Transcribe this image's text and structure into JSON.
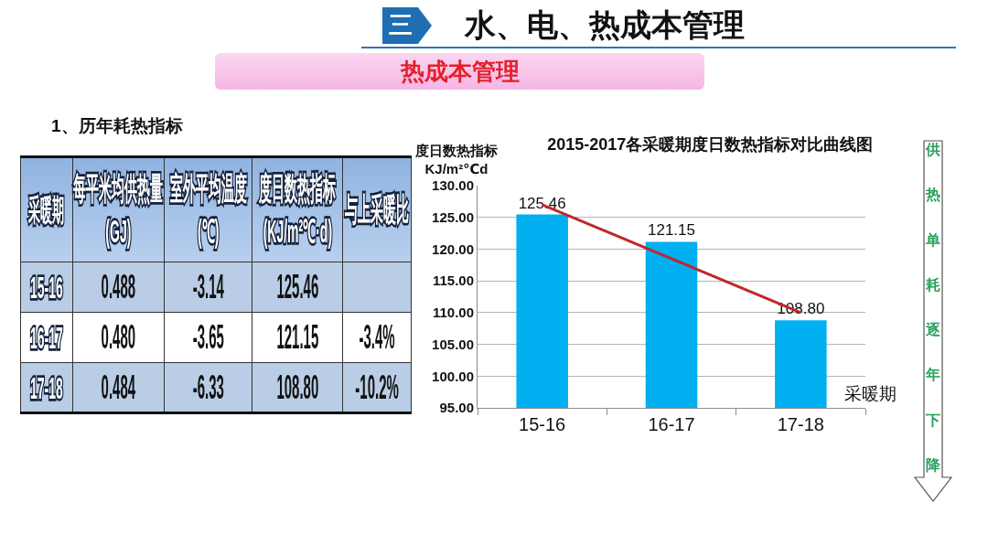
{
  "chart_data": [
    {
      "type": "other",
      "title": "水、电、热成本管理",
      "subtitle": "热成本管理",
      "annotations": [
        "三"
      ]
    },
    {
      "type": "other",
      "title": "1、历年耗热指标",
      "ylabel": "采暖期",
      "categories": [
        "每平米均供热量 (GJ)",
        "室外平均温度 (℃)",
        "度日数热指标 (KJ/m²℃·d)",
        "与上采暖比"
      ],
      "y_categories": [
        "15-16",
        "16-17",
        "17-18"
      ],
      "cell_labels": [
        [
          "0.488",
          "-3.14",
          "125.46",
          null
        ],
        [
          "0.480",
          "-3.65",
          "121.15",
          "-3.4%"
        ],
        [
          "0.484",
          "-6.33",
          "108.80",
          "-10.2%"
        ]
      ]
    },
    {
      "type": "bar",
      "title": "2015-2017各采暖期度日数热指标对比曲线图",
      "xlabel": "采暖期",
      "ylabel": "度日数热指标\nKJ/m²℃d",
      "categories": [
        "15-16",
        "16-17",
        "17-18"
      ],
      "series": [
        {
          "type": "bar",
          "color": "#00b0f0",
          "values": [
            125.46,
            121.15,
            108.8
          ],
          "value_labels": [
            "125.46",
            "121.15",
            "108.80"
          ]
        },
        {
          "type": "line",
          "color": "#c0272d",
          "x": [
            "15-16",
            "17-18"
          ],
          "values": [
            127.0,
            110.0
          ]
        }
      ],
      "ylim": [
        95,
        130
      ],
      "yticks": [
        {
          "value": 95,
          "label": "95.00"
        },
        {
          "value": 100,
          "label": "100.00"
        },
        {
          "value": 105,
          "label": "105.00"
        },
        {
          "value": 110,
          "label": "110.00"
        },
        {
          "value": 115,
          "label": "115.00"
        },
        {
          "value": 120,
          "label": "120.00"
        },
        {
          "value": 125,
          "label": "125.00"
        },
        {
          "value": 130,
          "label": "130.00"
        }
      ],
      "grid": "y",
      "annotations": [
        "供热单耗逐年下降"
      ]
    }
  ]
}
